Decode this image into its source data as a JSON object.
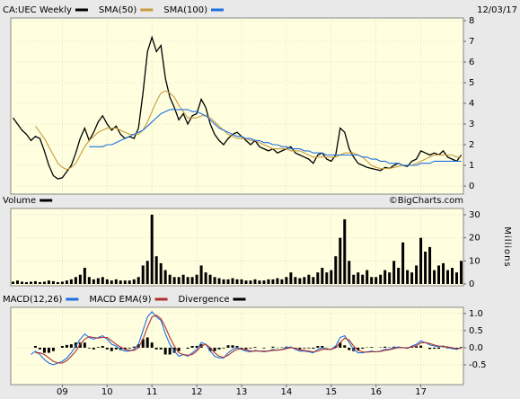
{
  "chart_data": [
    {
      "type": "line",
      "date": "12/03/17",
      "grid": true,
      "x": [
        2007.9,
        2008,
        2008.1,
        2008.2,
        2008.3,
        2008.4,
        2008.5,
        2008.6,
        2008.7,
        2008.8,
        2008.9,
        2009,
        2009.1,
        2009.2,
        2009.3,
        2009.4,
        2009.5,
        2009.6,
        2009.7,
        2009.8,
        2009.9,
        2010,
        2010.1,
        2010.2,
        2010.3,
        2010.4,
        2010.5,
        2010.6,
        2010.7,
        2010.8,
        2010.9,
        2011,
        2011.1,
        2011.2,
        2011.3,
        2011.4,
        2011.5,
        2011.6,
        2011.7,
        2011.8,
        2011.9,
        2012,
        2012.1,
        2012.2,
        2012.3,
        2012.4,
        2012.5,
        2012.6,
        2012.7,
        2012.8,
        2012.9,
        2013,
        2013.1,
        2013.2,
        2013.3,
        2013.4,
        2013.5,
        2013.6,
        2013.7,
        2013.8,
        2013.9,
        2014,
        2014.1,
        2014.2,
        2014.3,
        2014.4,
        2014.5,
        2014.6,
        2014.7,
        2014.8,
        2014.9,
        2015,
        2015.1,
        2015.2,
        2015.3,
        2015.4,
        2015.5,
        2015.6,
        2015.7,
        2015.8,
        2015.9,
        2016,
        2016.1,
        2016.2,
        2016.3,
        2016.4,
        2016.5,
        2016.6,
        2016.7,
        2016.8,
        2016.9,
        2017,
        2017.1,
        2017.2,
        2017.3,
        2017.4,
        2017.5,
        2017.6,
        2017.7,
        2017.8,
        2017.9
      ],
      "xlim": [
        2007.85,
        2017.95
      ],
      "ylim": [
        -0.39,
        8.13
      ],
      "yticks": [
        0,
        1,
        2,
        3,
        4,
        5,
        6,
        7,
        8
      ],
      "series": [
        {
          "name": "CA:UEC Weekly",
          "color": "#000000",
          "values": [
            3.3,
            3.0,
            2.7,
            2.5,
            2.2,
            2.4,
            2.3,
            1.7,
            1.0,
            0.5,
            0.35,
            0.4,
            0.7,
            1.0,
            1.6,
            2.3,
            2.8,
            2.2,
            2.6,
            3.1,
            3.4,
            3.0,
            2.7,
            2.9,
            2.5,
            2.3,
            2.4,
            2.3,
            2.8,
            4.5,
            6.5,
            7.2,
            6.5,
            6.8,
            5.2,
            4.3,
            3.8,
            3.2,
            3.5,
            3.0,
            3.4,
            3.5,
            4.2,
            3.8,
            3.0,
            2.5,
            2.2,
            2.0,
            2.3,
            2.5,
            2.6,
            2.4,
            2.2,
            2.0,
            2.2,
            1.9,
            1.8,
            1.7,
            1.8,
            1.6,
            1.7,
            1.8,
            1.9,
            1.6,
            1.5,
            1.4,
            1.3,
            1.1,
            1.5,
            1.6,
            1.3,
            1.2,
            1.5,
            2.8,
            2.6,
            1.8,
            1.4,
            1.1,
            1.0,
            0.9,
            0.85,
            0.8,
            0.75,
            0.9,
            0.85,
            1.0,
            1.1,
            1.0,
            0.95,
            1.2,
            1.3,
            1.7,
            1.6,
            1.5,
            1.6,
            1.5,
            1.7,
            1.4,
            1.3,
            1.2,
            1.5
          ]
        },
        {
          "name": "SMA(50)",
          "color": "#c89b3c",
          "values": [
            null,
            null,
            null,
            null,
            null,
            2.9,
            2.6,
            2.3,
            1.9,
            1.5,
            1.1,
            0.9,
            0.8,
            0.9,
            1.1,
            1.5,
            1.9,
            2.2,
            2.4,
            2.6,
            2.7,
            2.8,
            2.8,
            2.8,
            2.7,
            2.6,
            2.5,
            2.5,
            2.5,
            2.7,
            3.1,
            3.6,
            4.1,
            4.5,
            4.6,
            4.5,
            4.3,
            3.9,
            3.6,
            3.3,
            3.3,
            3.3,
            3.4,
            3.4,
            3.3,
            3.1,
            2.9,
            2.7,
            2.5,
            2.4,
            2.3,
            2.3,
            2.3,
            2.2,
            2.2,
            2.1,
            2.0,
            1.9,
            1.8,
            1.8,
            1.8,
            1.8,
            1.7,
            1.7,
            1.7,
            1.6,
            1.5,
            1.4,
            1.4,
            1.4,
            1.4,
            1.4,
            1.4,
            1.5,
            1.6,
            1.6,
            1.6,
            1.5,
            1.4,
            1.2,
            1.0,
            0.9,
            0.85,
            0.85,
            0.85,
            0.9,
            0.95,
            1.0,
            1.0,
            1.0,
            1.1,
            1.2,
            1.3,
            1.4,
            1.5,
            1.5,
            1.5,
            1.5,
            1.5,
            1.4,
            1.4
          ]
        },
        {
          "name": "SMA(100)",
          "color": "#1f6fe0",
          "values": [
            null,
            null,
            null,
            null,
            null,
            null,
            null,
            null,
            null,
            null,
            null,
            null,
            null,
            null,
            null,
            null,
            null,
            1.9,
            1.9,
            1.9,
            1.9,
            2.0,
            2.0,
            2.1,
            2.2,
            2.3,
            2.4,
            2.5,
            2.6,
            2.7,
            2.9,
            3.1,
            3.3,
            3.5,
            3.6,
            3.7,
            3.7,
            3.7,
            3.7,
            3.7,
            3.6,
            3.6,
            3.5,
            3.4,
            3.2,
            3.0,
            2.8,
            2.7,
            2.6,
            2.5,
            2.4,
            2.4,
            2.3,
            2.3,
            2.2,
            2.2,
            2.1,
            2.1,
            2.0,
            2.0,
            1.9,
            1.9,
            1.8,
            1.8,
            1.8,
            1.7,
            1.7,
            1.6,
            1.6,
            1.6,
            1.5,
            1.5,
            1.5,
            1.5,
            1.5,
            1.5,
            1.5,
            1.5,
            1.4,
            1.4,
            1.3,
            1.3,
            1.2,
            1.2,
            1.1,
            1.1,
            1.1,
            1.0,
            1.0,
            1.0,
            1.0,
            1.1,
            1.1,
            1.1,
            1.2,
            1.2,
            1.2,
            1.2,
            1.2,
            1.2,
            1.2
          ]
        }
      ]
    },
    {
      "type": "bar",
      "source": "©BigCharts.com",
      "ylabel": "Millions",
      "grid": true,
      "x": [
        2007.9,
        2008,
        2008.1,
        2008.2,
        2008.3,
        2008.4,
        2008.5,
        2008.6,
        2008.7,
        2008.8,
        2008.9,
        2009,
        2009.1,
        2009.2,
        2009.3,
        2009.4,
        2009.5,
        2009.6,
        2009.7,
        2009.8,
        2009.9,
        2010,
        2010.1,
        2010.2,
        2010.3,
        2010.4,
        2010.5,
        2010.6,
        2010.7,
        2010.8,
        2010.9,
        2011,
        2011.1,
        2011.2,
        2011.3,
        2011.4,
        2011.5,
        2011.6,
        2011.7,
        2011.8,
        2011.9,
        2012,
        2012.1,
        2012.2,
        2012.3,
        2012.4,
        2012.5,
        2012.6,
        2012.7,
        2012.8,
        2012.9,
        2013,
        2013.1,
        2013.2,
        2013.3,
        2013.4,
        2013.5,
        2013.6,
        2013.7,
        2013.8,
        2013.9,
        2014,
        2014.1,
        2014.2,
        2014.3,
        2014.4,
        2014.5,
        2014.6,
        2014.7,
        2014.8,
        2014.9,
        2015,
        2015.1,
        2015.2,
        2015.3,
        2015.4,
        2015.5,
        2015.6,
        2015.7,
        2015.8,
        2015.9,
        2016,
        2016.1,
        2016.2,
        2016.3,
        2016.4,
        2016.5,
        2016.6,
        2016.7,
        2016.8,
        2016.9,
        2017,
        2017.1,
        2017.2,
        2017.3,
        2017.4,
        2017.5,
        2017.6,
        2017.7,
        2017.8,
        2017.9
      ],
      "xlim": [
        2007.85,
        2017.95
      ],
      "ylim": [
        -0.78,
        32.7
      ],
      "yticks": [
        0,
        10,
        20,
        30
      ],
      "series": [
        {
          "name": "Volume",
          "color": "#000000",
          "values": [
            1,
            1.5,
            1,
            0.8,
            1,
            1.2,
            0.8,
            1,
            1.5,
            1.2,
            0.8,
            1,
            1.5,
            2,
            3,
            4,
            7,
            3,
            2,
            2.5,
            3,
            2,
            1.5,
            2,
            1.5,
            1.5,
            1.5,
            2,
            3,
            8,
            10,
            30,
            12,
            9,
            6,
            4,
            3,
            3,
            4,
            3,
            3,
            4,
            8,
            5,
            4,
            3,
            2.5,
            2,
            2,
            2.5,
            2,
            2,
            1.5,
            1.5,
            2,
            1.5,
            1.5,
            2,
            2,
            2.5,
            2,
            3,
            5,
            3,
            2.5,
            3,
            4,
            3,
            5,
            7,
            5,
            6,
            12,
            20,
            28,
            10,
            4,
            5,
            4,
            6,
            3,
            3,
            4,
            6,
            5,
            10,
            7,
            18,
            6,
            5,
            8,
            20,
            14,
            16,
            6,
            8,
            9,
            6,
            7,
            5,
            10
          ]
        }
      ]
    },
    {
      "type": "line",
      "grid": true,
      "x": [
        2007.9,
        2008,
        2008.1,
        2008.2,
        2008.3,
        2008.4,
        2008.5,
        2008.6,
        2008.7,
        2008.8,
        2008.9,
        2009,
        2009.1,
        2009.2,
        2009.3,
        2009.4,
        2009.5,
        2009.6,
        2009.7,
        2009.8,
        2009.9,
        2010,
        2010.1,
        2010.2,
        2010.3,
        2010.4,
        2010.5,
        2010.6,
        2010.7,
        2010.8,
        2010.9,
        2011,
        2011.1,
        2011.2,
        2011.3,
        2011.4,
        2011.5,
        2011.6,
        2011.7,
        2011.8,
        2011.9,
        2012,
        2012.1,
        2012.2,
        2012.3,
        2012.4,
        2012.5,
        2012.6,
        2012.7,
        2012.8,
        2012.9,
        2013,
        2013.1,
        2013.2,
        2013.3,
        2013.4,
        2013.5,
        2013.6,
        2013.7,
        2013.8,
        2013.9,
        2014,
        2014.1,
        2014.2,
        2014.3,
        2014.4,
        2014.5,
        2014.6,
        2014.7,
        2014.8,
        2014.9,
        2015,
        2015.1,
        2015.2,
        2015.3,
        2015.4,
        2015.5,
        2015.6,
        2015.7,
        2015.8,
        2015.9,
        2016,
        2016.1,
        2016.2,
        2016.3,
        2016.4,
        2016.5,
        2016.6,
        2016.7,
        2016.8,
        2016.9,
        2017,
        2017.1,
        2017.2,
        2017.3,
        2017.4,
        2017.5,
        2017.6,
        2017.7,
        2017.8,
        2017.9
      ],
      "xlim": [
        2007.85,
        2017.95
      ],
      "xticks": [
        {
          "value": 2009,
          "label": "09"
        },
        {
          "value": 2010,
          "label": "10"
        },
        {
          "value": 2011,
          "label": "11"
        },
        {
          "value": 2012,
          "label": "12"
        },
        {
          "value": 2013,
          "label": "13"
        },
        {
          "value": 2014,
          "label": "14"
        },
        {
          "value": 2015,
          "label": "15"
        },
        {
          "value": 2016,
          "label": "16"
        },
        {
          "value": 2017,
          "label": "17"
        }
      ],
      "ylim": [
        -1.08,
        1.18
      ],
      "yticks": [
        {
          "value": 1,
          "label": "1.0"
        },
        {
          "value": 0.5,
          "label": "0.5"
        },
        {
          "value": 0,
          "label": "0.0"
        },
        {
          "value": -0.5,
          "label": "-0.5"
        }
      ],
      "series": [
        {
          "name": "MACD(12,26)",
          "color": "#1f6fe0",
          "values": [
            null,
            null,
            null,
            null,
            -0.2,
            -0.1,
            -0.2,
            -0.35,
            -0.45,
            -0.5,
            -0.45,
            -0.4,
            -0.3,
            -0.15,
            0.05,
            0.25,
            0.4,
            0.3,
            0.25,
            0.3,
            0.35,
            0.25,
            0.1,
            0.05,
            -0.05,
            -0.1,
            -0.1,
            -0.05,
            0.1,
            0.5,
            0.9,
            1.05,
            0.9,
            0.8,
            0.4,
            0.1,
            -0.1,
            -0.25,
            -0.2,
            -0.25,
            -0.15,
            -0.05,
            0.15,
            0.1,
            -0.1,
            -0.25,
            -0.3,
            -0.3,
            -0.15,
            -0.05,
            0,
            -0.05,
            -0.1,
            -0.12,
            -0.08,
            -0.1,
            -0.12,
            -0.1,
            -0.05,
            -0.08,
            -0.05,
            0,
            0.02,
            -0.05,
            -0.1,
            -0.1,
            -0.12,
            -0.15,
            -0.05,
            0,
            -0.05,
            -0.05,
            0.05,
            0.3,
            0.35,
            0.15,
            -0.05,
            -0.15,
            -0.15,
            -0.12,
            -0.1,
            -0.12,
            -0.1,
            -0.05,
            -0.05,
            0,
            0.02,
            0,
            -0.02,
            0.05,
            0.1,
            0.2,
            0.15,
            0.08,
            0.05,
            0.02,
            0.05,
            0,
            -0.03,
            -0.05,
            0
          ]
        },
        {
          "name": "MACD EMA(9)",
          "color": "#b03030",
          "values": [
            null,
            null,
            null,
            null,
            null,
            -0.15,
            -0.15,
            -0.2,
            -0.3,
            -0.4,
            -0.45,
            -0.45,
            -0.38,
            -0.25,
            -0.1,
            0.1,
            0.25,
            0.32,
            0.3,
            0.28,
            0.3,
            0.3,
            0.2,
            0.1,
            0.02,
            -0.05,
            -0.08,
            -0.08,
            0,
            0.25,
            0.6,
            0.9,
            0.95,
            0.85,
            0.6,
            0.3,
            0.05,
            -0.15,
            -0.2,
            -0.22,
            -0.2,
            -0.1,
            0.05,
            0.1,
            0,
            -0.15,
            -0.25,
            -0.28,
            -0.22,
            -0.12,
            -0.05,
            -0.03,
            -0.06,
            -0.1,
            -0.1,
            -0.1,
            -0.1,
            -0.1,
            -0.08,
            -0.07,
            -0.06,
            -0.03,
            0,
            -0.02,
            -0.06,
            -0.08,
            -0.1,
            -0.12,
            -0.1,
            -0.05,
            -0.04,
            -0.05,
            0,
            0.15,
            0.28,
            0.22,
            0.05,
            -0.08,
            -0.12,
            -0.13,
            -0.12,
            -0.12,
            -0.11,
            -0.08,
            -0.06,
            -0.03,
            0,
            0,
            0,
            0.02,
            0.06,
            0.14,
            0.15,
            0.12,
            0.08,
            0.05,
            0.04,
            0.02,
            0,
            -0.03,
            -0.02
          ]
        },
        {
          "name": "Divergence",
          "color": "#000000",
          "type": "bar",
          "values": [
            null,
            null,
            null,
            null,
            null,
            0.05,
            -0.05,
            -0.15,
            -0.15,
            -0.1,
            0,
            0.05,
            0.08,
            0.1,
            0.15,
            0.15,
            0.15,
            -0.02,
            -0.05,
            0.02,
            0.05,
            -0.05,
            -0.1,
            -0.05,
            -0.07,
            -0.05,
            -0.02,
            0.03,
            0.1,
            0.25,
            0.3,
            0.15,
            -0.05,
            -0.05,
            -0.2,
            -0.2,
            -0.15,
            -0.1,
            0,
            -0.03,
            0.05,
            0.05,
            0.1,
            0,
            -0.1,
            -0.1,
            -0.05,
            -0.02,
            0.07,
            0.07,
            0.05,
            -0.02,
            -0.04,
            -0.02,
            0.02,
            0,
            -0.02,
            0,
            0.03,
            -0.01,
            0.01,
            0.03,
            0.02,
            -0.03,
            -0.04,
            -0.02,
            -0.02,
            -0.03,
            0.05,
            0.05,
            -0.01,
            0,
            0.05,
            0.15,
            0.07,
            -0.07,
            -0.1,
            -0.07,
            -0.03,
            0.01,
            0.02,
            0,
            0.01,
            0.03,
            0.01,
            0.03,
            0.02,
            0,
            -0.02,
            0.03,
            0.04,
            0.06,
            0,
            -0.04,
            -0.03,
            -0.03,
            0.01,
            -0.02,
            -0.03,
            -0.02,
            0.02
          ]
        }
      ]
    }
  ]
}
